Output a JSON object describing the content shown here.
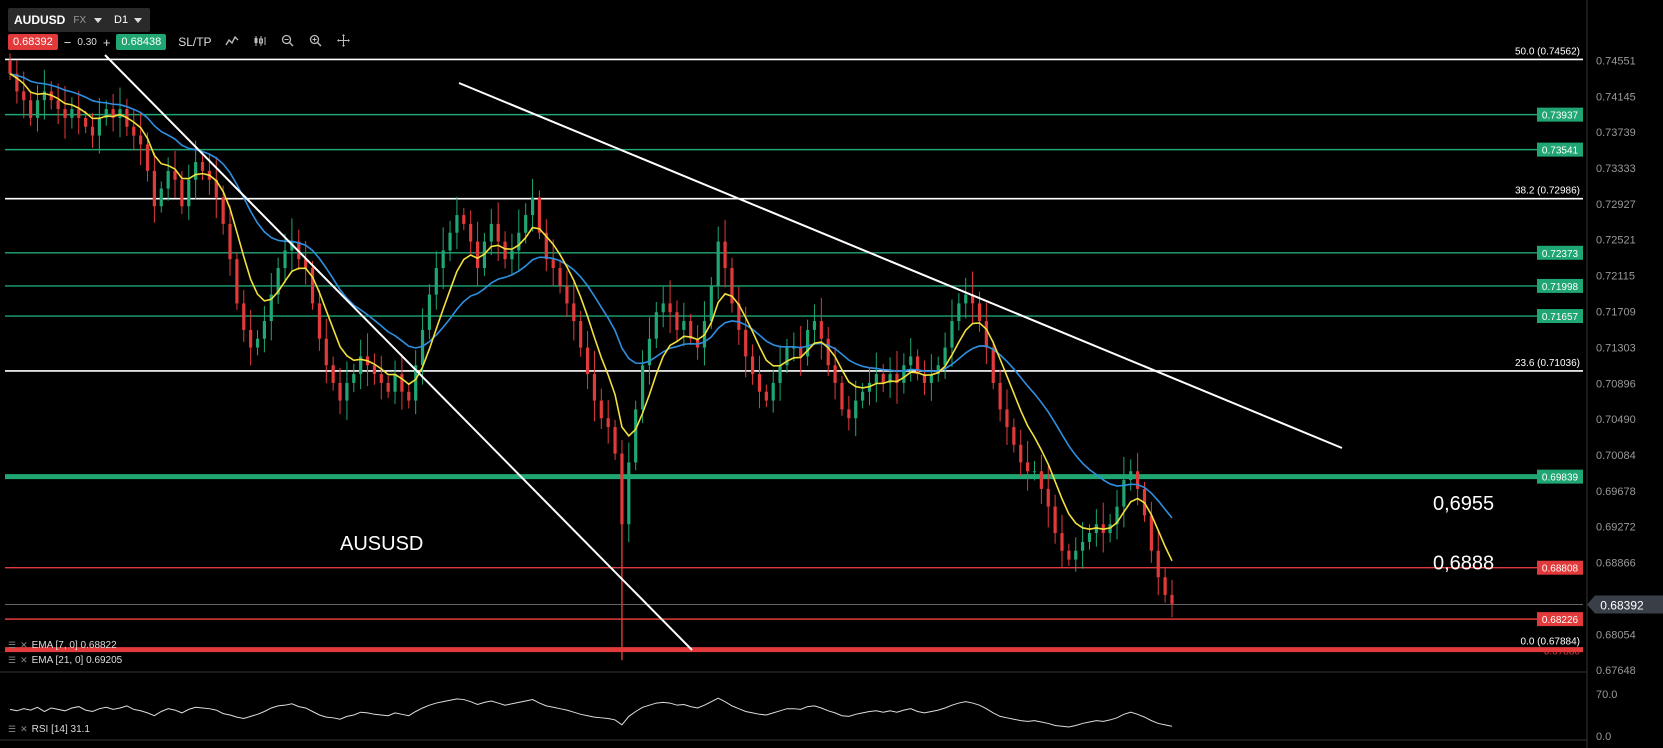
{
  "toolbar": {
    "symbol": "AUDUSD",
    "market": "FX",
    "timeframe": "D1",
    "bid": "0.68392",
    "spread": "0.30",
    "ask": "0.68438",
    "sltp_label": "SL/TP",
    "minus": "−",
    "plus": "+"
  },
  "chart_data": {
    "type": "candlestick",
    "symbol_label": "AUSUSD",
    "y_ticks": [
      "0.74551",
      "0.74145",
      "0.73739",
      "0.73333",
      "0.72927",
      "0.72521",
      "0.72115",
      "0.71709",
      "0.71303",
      "0.70896",
      "0.70490",
      "0.70084",
      "0.69678",
      "0.69272",
      "0.68866",
      "0.68054",
      "0.67648"
    ],
    "ylim": [
      0.6765,
      0.7468
    ],
    "current_price": "0.68392",
    "horizontal_levels": [
      {
        "value": 0.73937,
        "label": "0.73937",
        "color": "#1fa672"
      },
      {
        "value": 0.73541,
        "label": "0.73541",
        "color": "#1fa672"
      },
      {
        "value": 0.72373,
        "label": "0.72373",
        "color": "#1fa672"
      },
      {
        "value": 0.71998,
        "label": "0.71998",
        "color": "#1fa672"
      },
      {
        "value": 0.71657,
        "label": "0.71657",
        "color": "#1fa672"
      },
      {
        "value": 0.69839,
        "label": "0.69839",
        "color": "#1fa672"
      },
      {
        "value": 0.68808,
        "label": "0.68808",
        "color": "#e23a3a"
      },
      {
        "value": 0.68226,
        "label": "0.68226",
        "color": "#e23a3a"
      }
    ],
    "fib_levels": [
      {
        "value": 0.74562,
        "label": "50.0 (0.74562)"
      },
      {
        "value": 0.72986,
        "label": "38.2 (0.72986)"
      },
      {
        "value": 0.71036,
        "label": "23.6 (0.71036)"
      },
      {
        "value": 0.67884,
        "label": "0.0 (0.67884)"
      }
    ],
    "annotations": [
      {
        "text": "0,6955",
        "value": 0.6955
      },
      {
        "text": "0,6888",
        "value": 0.6888
      }
    ],
    "support_label": "0.67880",
    "close_path": [
      0.744,
      0.742,
      0.741,
      0.739,
      0.741,
      0.742,
      0.741,
      0.74,
      0.739,
      0.74,
      0.739,
      0.738,
      0.737,
      0.739,
      0.74,
      0.739,
      0.74,
      0.738,
      0.737,
      0.736,
      0.733,
      0.729,
      0.731,
      0.733,
      0.732,
      0.729,
      0.732,
      0.734,
      0.733,
      0.732,
      0.73,
      0.727,
      0.723,
      0.718,
      0.715,
      0.713,
      0.714,
      0.716,
      0.719,
      0.722,
      0.724,
      0.725,
      0.723,
      0.722,
      0.718,
      0.714,
      0.711,
      0.709,
      0.707,
      0.709,
      0.71,
      0.712,
      0.711,
      0.71,
      0.709,
      0.708,
      0.71,
      0.708,
      0.707,
      0.711,
      0.715,
      0.719,
      0.722,
      0.724,
      0.726,
      0.728,
      0.727,
      0.725,
      0.722,
      0.725,
      0.727,
      0.725,
      0.723,
      0.724,
      0.726,
      0.728,
      0.73,
      0.726,
      0.723,
      0.722,
      0.72,
      0.718,
      0.716,
      0.713,
      0.71,
      0.707,
      0.705,
      0.704,
      0.701,
      0.693,
      0.7,
      0.706,
      0.711,
      0.714,
      0.717,
      0.718,
      0.717,
      0.715,
      0.716,
      0.714,
      0.713,
      0.716,
      0.72,
      0.725,
      0.722,
      0.718,
      0.715,
      0.712,
      0.71,
      0.708,
      0.707,
      0.709,
      0.711,
      0.713,
      0.713,
      0.712,
      0.715,
      0.716,
      0.714,
      0.711,
      0.709,
      0.706,
      0.705,
      0.707,
      0.708,
      0.709,
      0.71,
      0.709,
      0.71,
      0.709,
      0.711,
      0.712,
      0.71,
      0.709,
      0.71,
      0.711,
      0.713,
      0.716,
      0.718,
      0.719,
      0.718,
      0.716,
      0.713,
      0.709,
      0.706,
      0.704,
      0.702,
      0.7,
      0.699,
      0.699,
      0.697,
      0.695,
      0.692,
      0.69,
      0.689,
      0.69,
      0.691,
      0.692,
      0.693,
      0.692,
      0.693,
      0.695,
      0.698,
      0.699,
      0.697,
      0.694,
      0.69,
      0.687,
      0.685,
      0.684
    ],
    "ema7": {
      "label": "EMA [7, 0] 0.68822",
      "color": "#f2e03c"
    },
    "ema21": {
      "label": "EMA [21, 0] 0.69205",
      "color": "#2d8fe0"
    },
    "rsi": {
      "label": "RSI [14] 31.1",
      "ticks": [
        "70.0",
        "0.0"
      ],
      "values": [
        55,
        53,
        56,
        54,
        58,
        52,
        57,
        55,
        53,
        57,
        59,
        54,
        52,
        56,
        58,
        55,
        57,
        60,
        55,
        53,
        50,
        46,
        52,
        56,
        54,
        50,
        55,
        58,
        57,
        56,
        54,
        49,
        47,
        44,
        42,
        45,
        48,
        52,
        57,
        60,
        61,
        63,
        59,
        57,
        52,
        47,
        44,
        43,
        41,
        45,
        47,
        51,
        50,
        48,
        47,
        46,
        50,
        48,
        46,
        52,
        57,
        61,
        64,
        66,
        68,
        70,
        69,
        66,
        62,
        65,
        67,
        64,
        61,
        63,
        65,
        67,
        69,
        64,
        60,
        58,
        56,
        54,
        51,
        48,
        46,
        44,
        43,
        42,
        40,
        33,
        45,
        52,
        58,
        61,
        64,
        65,
        64,
        61,
        62,
        59,
        57,
        61,
        66,
        71,
        66,
        60,
        56,
        52,
        50,
        48,
        47,
        50,
        53,
        56,
        56,
        55,
        59,
        60,
        57,
        53,
        50,
        46,
        45,
        48,
        50,
        52,
        53,
        51,
        53,
        51,
        54,
        56,
        52,
        50,
        52,
        54,
        57,
        61,
        64,
        66,
        64,
        61,
        56,
        50,
        45,
        43,
        41,
        39,
        38,
        39,
        37,
        35,
        32,
        31,
        30,
        32,
        35,
        37,
        39,
        38,
        40,
        43,
        48,
        51,
        48,
        44,
        39,
        35,
        33,
        31
      ]
    }
  }
}
